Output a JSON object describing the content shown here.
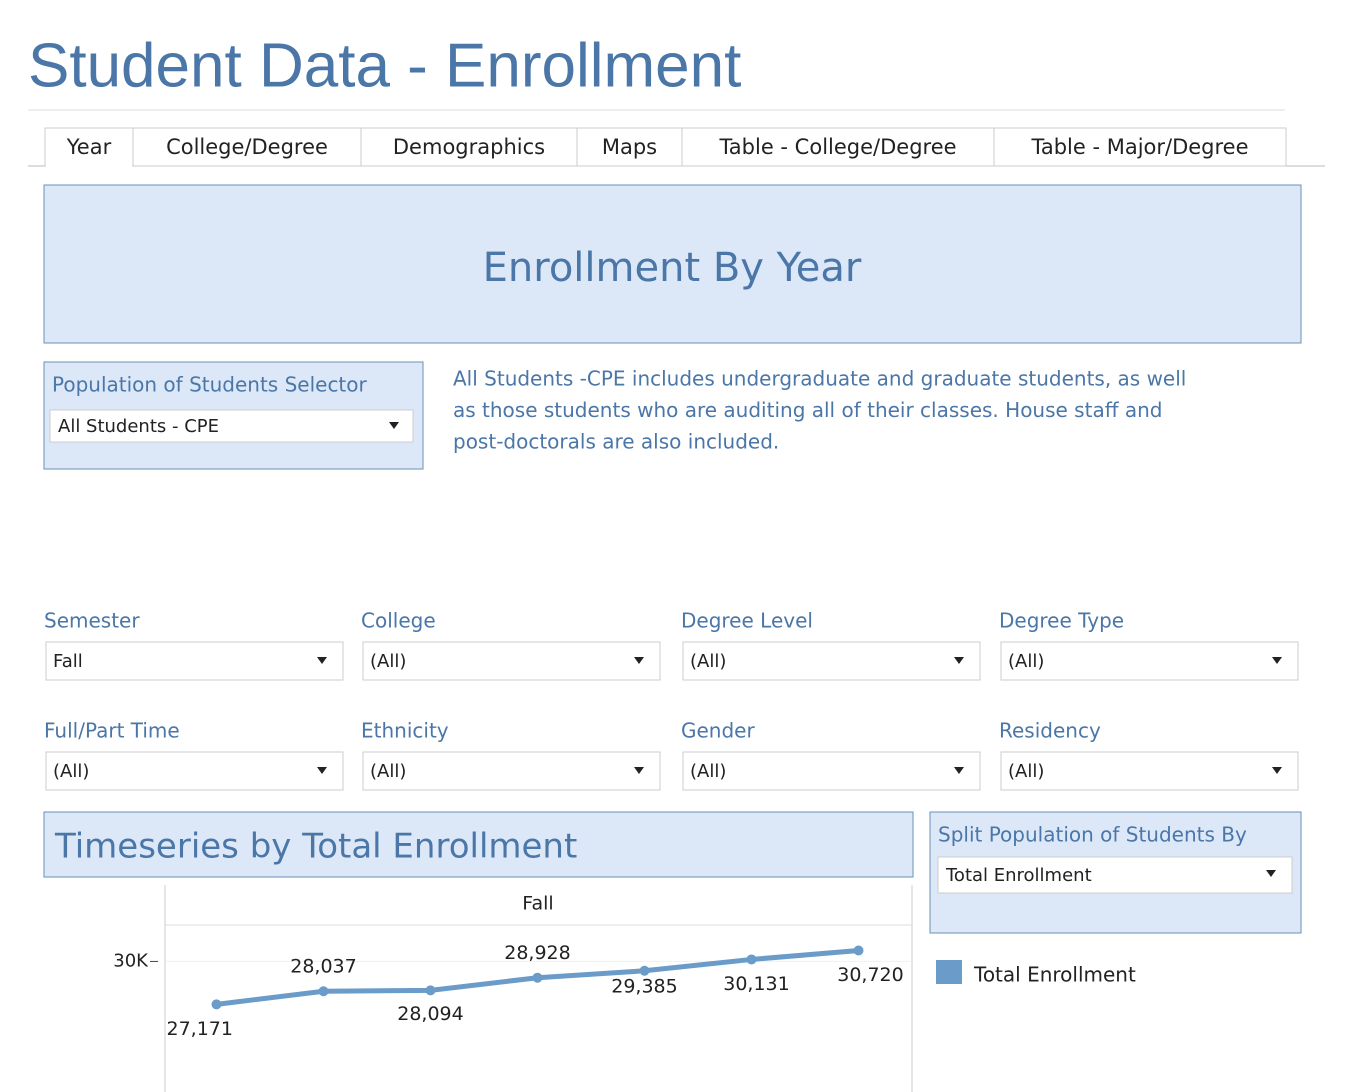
{
  "header": {
    "title": "Student Data - Enrollment"
  },
  "tabs": [
    "Year",
    "College/Degree",
    "Demographics",
    "Maps",
    "Table - College/Degree",
    "Table - Major/Degree"
  ],
  "banner": "Enrollment By Year",
  "population_selector": {
    "label": "Population of Students Selector",
    "value": "All Students - CPE"
  },
  "description": [
    "All Students -CPE includes undergraduate and graduate students, as well",
    "as those students who are auditing all of their classes. House staff and",
    "post-doctorals are also included."
  ],
  "filters": [
    {
      "label": "Semester",
      "value": "Fall"
    },
    {
      "label": "College",
      "value": "(All)"
    },
    {
      "label": "Degree Level",
      "value": "(All)"
    },
    {
      "label": "Degree Type",
      "value": "(All)"
    },
    {
      "label": "Full/Part Time",
      "value": "(All)"
    },
    {
      "label": "Ethnicity",
      "value": "(All)"
    },
    {
      "label": "Gender",
      "value": "(All)"
    },
    {
      "label": "Residency",
      "value": "(All)"
    }
  ],
  "chart_panel": {
    "title": "Timeseries by Total Enrollment"
  },
  "split_selector": {
    "label": "Split Population of Students By",
    "value": "Total Enrollment"
  },
  "chart_data": {
    "type": "line",
    "facet": "Fall",
    "series": [
      {
        "name": "Total Enrollment",
        "color": "#6a9bc9",
        "values": [
          27171,
          28037,
          28094,
          28928,
          29385,
          30131,
          30720
        ],
        "value_labels": [
          "27,171",
          "28,037",
          "28,094",
          "28,928",
          "29,385",
          "30,131",
          "30,720"
        ]
      }
    ],
    "ylim": [
      21400,
      32400
    ],
    "yticks": [
      {
        "value": 30000,
        "label": "30K"
      }
    ]
  }
}
